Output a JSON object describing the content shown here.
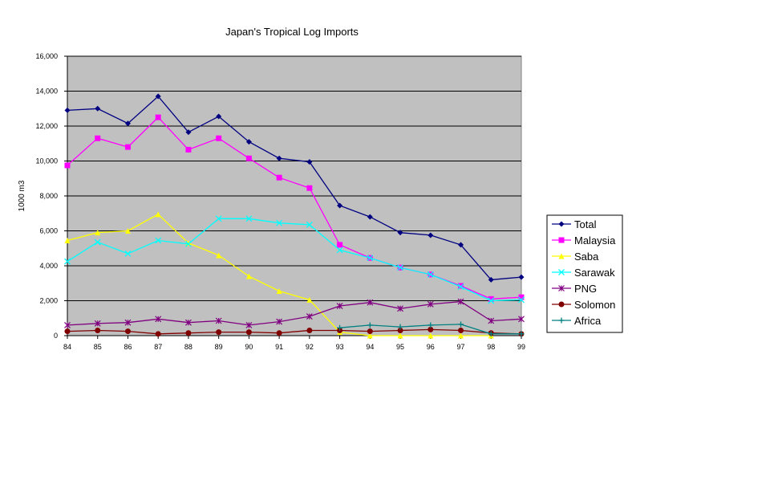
{
  "chart_data": {
    "type": "line",
    "title": "Japan's Tropical Log Imports",
    "xlabel": "",
    "ylabel": "1000 m3",
    "categories": [
      "84",
      "85",
      "86",
      "87",
      "88",
      "89",
      "90",
      "91",
      "92",
      "93",
      "94",
      "95",
      "96",
      "97",
      "98",
      "99"
    ],
    "ylim": [
      0,
      16000
    ],
    "yticks": [
      0,
      2000,
      4000,
      6000,
      8000,
      10000,
      12000,
      14000,
      16000
    ],
    "ytick_labels": [
      "0",
      "2,000",
      "4,000",
      "6,000",
      "8,000",
      "10,000",
      "12,000",
      "14,000",
      "16,000"
    ],
    "grid": true,
    "plot_background": "#c0c0c0",
    "legend_position": "right",
    "series": [
      {
        "name": "Total",
        "color": "#000080",
        "marker": "diamond",
        "values": [
          12900,
          13000,
          12150,
          13700,
          11650,
          12550,
          11100,
          10150,
          9950,
          7450,
          6800,
          5900,
          5750,
          5200,
          3200,
          3350
        ]
      },
      {
        "name": "Malaysia",
        "color": "#ff00ff",
        "marker": "square",
        "values": [
          9750,
          11300,
          10800,
          12500,
          10650,
          11300,
          10150,
          9050,
          8450,
          5200,
          4450,
          3900,
          3500,
          2850,
          2100,
          2200
        ]
      },
      {
        "name": "Saba",
        "color": "#ffff00",
        "marker": "triangle",
        "values": [
          5450,
          5900,
          6000,
          6950,
          5300,
          4600,
          3400,
          2550,
          2050,
          200,
          0,
          0,
          0,
          0,
          0,
          null
        ]
      },
      {
        "name": "Sarawak",
        "color": "#00ffff",
        "marker": "x",
        "values": [
          4250,
          5350,
          4700,
          5450,
          5250,
          6700,
          6700,
          6450,
          6350,
          4900,
          4450,
          3900,
          3500,
          2800,
          2000,
          2050
        ]
      },
      {
        "name": "PNG",
        "color": "#800080",
        "marker": "asterisk",
        "values": [
          600,
          700,
          750,
          950,
          750,
          850,
          600,
          800,
          1100,
          1700,
          1900,
          1550,
          1800,
          1950,
          850,
          950
        ]
      },
      {
        "name": "Solomon",
        "color": "#800000",
        "marker": "circle",
        "values": [
          250,
          300,
          250,
          100,
          150,
          200,
          200,
          150,
          300,
          300,
          250,
          300,
          350,
          300,
          150,
          100
        ]
      },
      {
        "name": "Africa",
        "color": "#008080",
        "marker": "plus",
        "values": [
          null,
          null,
          null,
          null,
          null,
          null,
          null,
          null,
          null,
          450,
          600,
          500,
          600,
          650,
          100,
          100
        ]
      }
    ]
  }
}
